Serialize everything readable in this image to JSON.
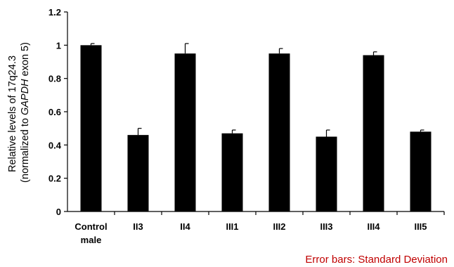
{
  "chart_data": {
    "type": "bar",
    "categories": [
      [
        "Control",
        "male"
      ],
      [
        "II3"
      ],
      [
        "II4"
      ],
      [
        "III1"
      ],
      [
        "III2"
      ],
      [
        "III3"
      ],
      [
        "III4"
      ],
      [
        "III5"
      ]
    ],
    "values": [
      1.0,
      0.46,
      0.95,
      0.47,
      0.95,
      0.45,
      0.94,
      0.48
    ],
    "error_bars": [
      0.01,
      0.04,
      0.06,
      0.02,
      0.03,
      0.04,
      0.02,
      0.01
    ],
    "error_bar_direction": "upper",
    "ylabel_lines": [
      "Relative levels of 17q24.3",
      "(normalized to ",
      "GAPDH",
      " exon 5)"
    ],
    "xlabel": "",
    "ylim": [
      0,
      1.2
    ],
    "yticks": [
      0,
      0.2,
      0.4,
      0.6,
      0.8,
      1,
      1.2
    ],
    "grid": false,
    "legend": "none",
    "bar_color": "#000000",
    "note": "Error bars: Standard Deviation",
    "note_color": "#c00000"
  }
}
